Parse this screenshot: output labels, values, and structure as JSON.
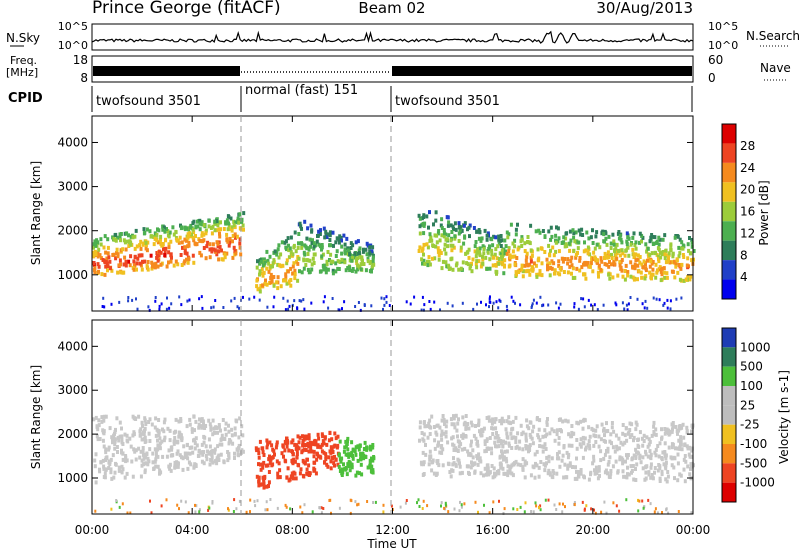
{
  "header": {
    "station": "Prince George (fitACF)",
    "beam": "Beam 02",
    "date": "30/Aug/2013"
  },
  "noise_panel": {
    "left_label": "N.Sky",
    "right_label": "N.Search",
    "left_ticks": [
      "10^5",
      "10^0"
    ],
    "right_ticks": [
      "10^5",
      "10^0"
    ]
  },
  "freq_panel": {
    "left_label_1": "Freq.",
    "left_label_2": "[MHz]",
    "left_ticks": [
      "18",
      "8"
    ],
    "right_label": "Nave",
    "right_ticks": [
      "60",
      "0"
    ]
  },
  "cpid": {
    "label": "CPID",
    "segments": [
      {
        "label": "twofsound 3501",
        "start_hour": 0,
        "end_hour": 6
      },
      {
        "label": "normal (fast) 151",
        "start_hour": 6,
        "end_hour": 12
      },
      {
        "label": "twofsound 3501",
        "start_hour": 12,
        "end_hour": 24
      }
    ]
  },
  "x_axis": {
    "label": "Time UT",
    "range_hours": [
      0,
      24
    ],
    "ticks": [
      "00:00",
      "04:00",
      "08:00",
      "12:00",
      "16:00",
      "20:00",
      "00:00"
    ]
  },
  "colors": {
    "power": [
      "#0000ee",
      "#2040c8",
      "#2e7d5a",
      "#4caf50",
      "#9ccc3a",
      "#f0c020",
      "#f58a1e",
      "#ee4422",
      "#dd0000"
    ],
    "velocity": [
      "#dd0000",
      "#ee4422",
      "#f58a1e",
      "#f0c020",
      "#bdbdbd",
      "#bdbdbd",
      "#4cbf3a",
      "#2e7d5a",
      "#1e3cb4"
    ],
    "ground_scatter": "#c8c8c8"
  },
  "chart_data": [
    {
      "type": "heatmap",
      "name": "power-panel",
      "ylabel": "Slant Range [km]",
      "xlabel": "Time UT",
      "xlim_hours": [
        0,
        24
      ],
      "ylim_km": [
        180,
        4600
      ],
      "y_ticks": [
        "1000",
        "2000",
        "3000",
        "4000"
      ],
      "colorbar": {
        "label": "Power [dB]",
        "ticks": [
          "28",
          "24",
          "20",
          "16",
          "12",
          "8",
          "4"
        ],
        "range": [
          0,
          30
        ]
      },
      "bands": [
        {
          "t0": 0.0,
          "t1": 6.0,
          "r0_start": 1000,
          "r0_end": 1450,
          "r1_start": 1900,
          "r1_end": 2450,
          "peak_db": 26
        },
        {
          "t0": 6.5,
          "t1": 8.2,
          "r0_start": 650,
          "r0_end": 800,
          "r1_start": 1400,
          "r1_end": 2100,
          "peak_db": 22
        },
        {
          "t0": 8.2,
          "t1": 11.2,
          "r0_start": 1050,
          "r0_end": 1100,
          "r1_start": 2300,
          "r1_end": 1700,
          "peak_db": 15
        },
        {
          "t0": 13.0,
          "t1": 16.5,
          "r0_start": 1200,
          "r0_end": 1050,
          "r1_start": 2600,
          "r1_end": 1900,
          "peak_db": 18
        },
        {
          "t0": 16.5,
          "t1": 24.0,
          "r0_start": 1000,
          "r0_end": 900,
          "r1_start": 2200,
          "r1_end": 1900,
          "peak_db": 22
        }
      ]
    },
    {
      "type": "heatmap",
      "name": "velocity-panel",
      "ylabel": "Slant Range [km]",
      "xlabel": "Time UT",
      "xlim_hours": [
        0,
        24
      ],
      "ylim_km": [
        180,
        4600
      ],
      "y_ticks": [
        "1000",
        "2000",
        "3000",
        "4000"
      ],
      "colorbar": {
        "label": "Velocity [m s-1]",
        "ticks": [
          "1000",
          "500",
          "100",
          "25",
          "-25",
          "-100",
          "-500",
          "-1000"
        ],
        "range": [
          -1000,
          1000
        ]
      },
      "bands": [
        {
          "t0": 0.0,
          "t1": 6.0,
          "r0_start": 900,
          "r0_end": 1450,
          "r1_start": 2450,
          "r1_end": 2450,
          "velocity": 0
        },
        {
          "t0": 6.5,
          "t1": 9.8,
          "r0_start": 750,
          "r0_end": 1300,
          "r1_start": 1900,
          "r1_end": 2100,
          "velocity": -400
        },
        {
          "t0": 9.8,
          "t1": 11.2,
          "r0_start": 1100,
          "r0_end": 1100,
          "r1_start": 2000,
          "r1_end": 1800,
          "velocity": 150
        },
        {
          "t0": 13.0,
          "t1": 24.0,
          "r0_start": 1100,
          "r0_end": 950,
          "r1_start": 2500,
          "r1_end": 2300,
          "velocity": 0
        }
      ]
    }
  ]
}
